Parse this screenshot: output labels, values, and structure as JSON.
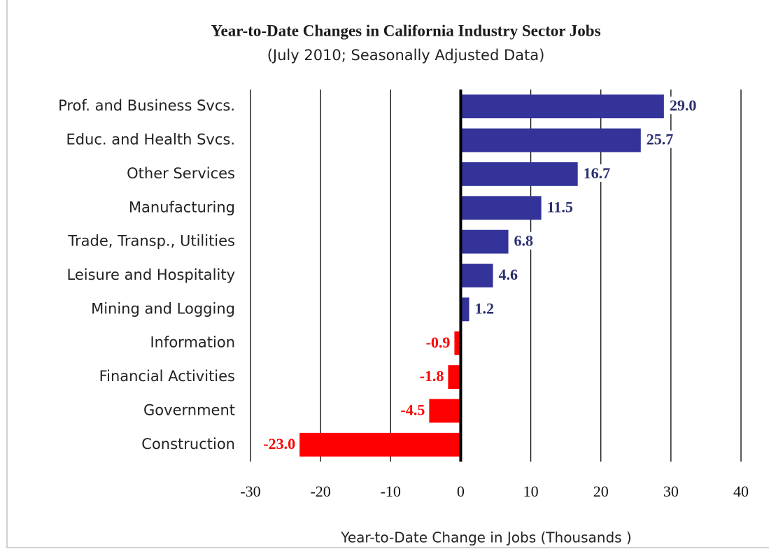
{
  "chart_data": {
    "type": "barh",
    "title": "Year-to-Date Changes in California Industry Sector Jobs",
    "subtitle": "(July 2010; Seasonally Adjusted Data)",
    "xlabel": "Year-to-Date Change  in Jobs (Thousands )",
    "categories": [
      "Prof. and Business Svcs.",
      "Educ. and Health Svcs.",
      "Other Services",
      "Manufacturing",
      "Trade, Transp., Utilities",
      "Leisure and Hospitality",
      "Mining and Logging",
      "Information",
      "Financial Activities",
      "Government",
      "Construction"
    ],
    "values": [
      29.0,
      25.7,
      16.7,
      11.5,
      6.8,
      4.6,
      1.2,
      -0.9,
      -1.8,
      -4.5,
      -23.0
    ],
    "value_labels": [
      "29.0",
      "25.7",
      "16.7",
      "11.5",
      "6.8",
      "4.6",
      "1.2",
      "-0.9",
      "-1.8",
      "-4.5",
      "-23.0"
    ],
    "colors": [
      "#333399",
      "#333399",
      "#333399",
      "#333399",
      "#333399",
      "#333399",
      "#333399",
      "#ff0000",
      "#ff0000",
      "#ff0000",
      "#ff0000"
    ],
    "xlim": [
      -30,
      40
    ],
    "xticks": [
      -30,
      -20,
      -10,
      0,
      10,
      20,
      30,
      40
    ],
    "grid": true
  }
}
